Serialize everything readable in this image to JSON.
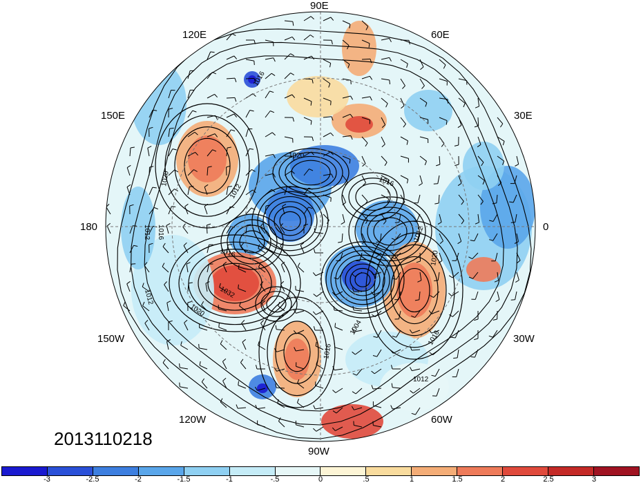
{
  "timestamp": "2013110218",
  "lon_labels": {
    "e90": "90E",
    "e120": "120E",
    "e60": "60E",
    "e150": "150E",
    "e30": "30E",
    "l180": "180",
    "l0": "0",
    "w150": "150W",
    "w30": "30W",
    "w120": "120W",
    "w60": "60W",
    "w90": "90W"
  },
  "colorbar": {
    "colors": [
      "#1a1ad0",
      "#2a50d8",
      "#3d7fe0",
      "#5aa6ea",
      "#8fd0f2",
      "#c5ecf7",
      "#e7f7f7",
      "#fdf5d6",
      "#f9dc9e",
      "#f4ad77",
      "#ee7b5a",
      "#e04a3c",
      "#c42a27",
      "#a01322"
    ],
    "ticks": [
      "-3",
      "-2.5",
      "-2",
      "-1.5",
      "-1",
      "-.5",
      "0",
      ".5",
      "1",
      "1.5",
      "2",
      "2.5",
      "3"
    ]
  },
  "contour_labels": [
    "1016",
    "1020",
    "1016",
    "1012",
    "1012",
    "1016",
    "1020",
    "1012",
    "1016",
    "1032",
    "1020",
    "1012",
    "1020",
    "1016",
    "1012",
    "1004",
    "1016"
  ]
}
